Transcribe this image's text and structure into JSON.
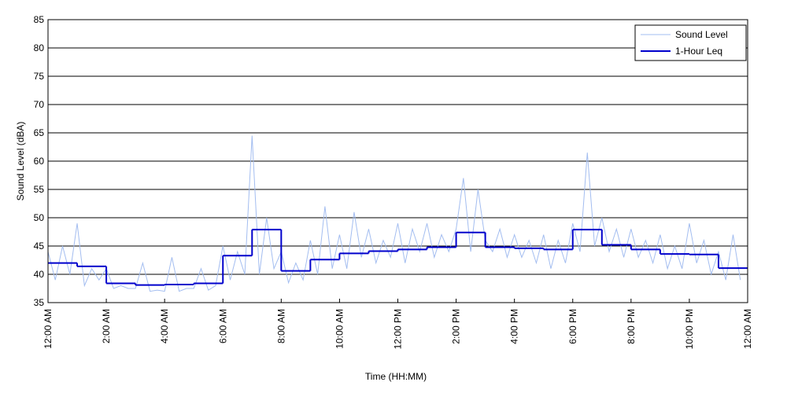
{
  "chart_data": {
    "type": "line",
    "xlabel": "Time (HH:MM)",
    "ylabel": "Sound Level (dBA)",
    "xlim": [
      0,
      24
    ],
    "ylim": [
      35,
      85
    ],
    "yticks": [
      35,
      40,
      45,
      50,
      55,
      60,
      65,
      70,
      75,
      80,
      85
    ],
    "xticks": [
      {
        "value": 0,
        "label": "12:00 AM"
      },
      {
        "value": 2,
        "label": "2:00 AM"
      },
      {
        "value": 4,
        "label": "4:00 AM"
      },
      {
        "value": 6,
        "label": "6:00 AM"
      },
      {
        "value": 8,
        "label": "8:00 AM"
      },
      {
        "value": 10,
        "label": "10:00 AM"
      },
      {
        "value": 12,
        "label": "12:00 PM"
      },
      {
        "value": 14,
        "label": "2:00 PM"
      },
      {
        "value": 16,
        "label": "4:00 PM"
      },
      {
        "value": 18,
        "label": "6:00 PM"
      },
      {
        "value": 20,
        "label": "8:00 PM"
      },
      {
        "value": 22,
        "label": "10:00 PM"
      },
      {
        "value": 24,
        "label": "12:00 AM"
      }
    ],
    "grid": true,
    "legend": "upper right",
    "series": [
      {
        "name": "Sound Level",
        "color": "#a3bdf0",
        "step": false,
        "x": [
          0,
          0.25,
          0.5,
          0.75,
          1,
          1.25,
          1.5,
          1.75,
          2,
          2.25,
          2.5,
          2.75,
          3,
          3.25,
          3.5,
          3.75,
          4,
          4.25,
          4.5,
          4.75,
          5,
          5.25,
          5.5,
          5.75,
          6,
          6.25,
          6.5,
          6.75,
          7,
          7.25,
          7.5,
          7.75,
          8,
          8.25,
          8.5,
          8.75,
          9,
          9.25,
          9.5,
          9.75,
          10,
          10.25,
          10.5,
          10.75,
          11,
          11.25,
          11.5,
          11.75,
          12,
          12.25,
          12.5,
          12.75,
          13,
          13.25,
          13.5,
          13.75,
          14,
          14.25,
          14.5,
          14.75,
          15,
          15.25,
          15.5,
          15.75,
          16,
          16.25,
          16.5,
          16.75,
          17,
          17.25,
          17.5,
          17.75,
          18,
          18.25,
          18.5,
          18.75,
          19,
          19.25,
          19.5,
          19.75,
          20,
          20.25,
          20.5,
          20.75,
          21,
          21.25,
          21.5,
          21.75,
          22,
          22.25,
          22.5,
          22.75,
          23,
          23.25,
          23.5,
          23.75
        ],
        "values": [
          44,
          39,
          45,
          40,
          49,
          38,
          41,
          39,
          41,
          37.5,
          38,
          37.5,
          37.5,
          42,
          37,
          37.2,
          37,
          43,
          37,
          37.5,
          37.5,
          41,
          37.2,
          38,
          45,
          39,
          44,
          40,
          64.5,
          40,
          50,
          41,
          44,
          38.5,
          42,
          39,
          46,
          40,
          52,
          41,
          47,
          41,
          51,
          43,
          48,
          42,
          46,
          43,
          49,
          42,
          48,
          44,
          49,
          43,
          47,
          44,
          48,
          57,
          44,
          55,
          46,
          44,
          48,
          43,
          47,
          43,
          46,
          42,
          47,
          41,
          46,
          42,
          49,
          44,
          61.5,
          45,
          50,
          44,
          48,
          43,
          48,
          43,
          46,
          42,
          47,
          41,
          45,
          41,
          49,
          42,
          46,
          40,
          44,
          39,
          47,
          39
        ]
      },
      {
        "name": "1-Hour Leq",
        "color": "#0000cc",
        "step": true,
        "x": [
          0,
          1,
          2,
          3,
          4,
          5,
          6,
          7,
          8,
          9,
          10,
          11,
          12,
          13,
          14,
          15,
          16,
          17,
          18,
          19,
          20,
          21,
          22,
          23
        ],
        "values": [
          42,
          41.4,
          38.4,
          38.1,
          38.2,
          38.4,
          43.3,
          47.9,
          40.6,
          42.6,
          43.7,
          44.1,
          44.4,
          44.8,
          47.4,
          44.8,
          44.6,
          44.4,
          47.9,
          45.2,
          44.4,
          43.6,
          43.5,
          41.1
        ]
      }
    ]
  }
}
